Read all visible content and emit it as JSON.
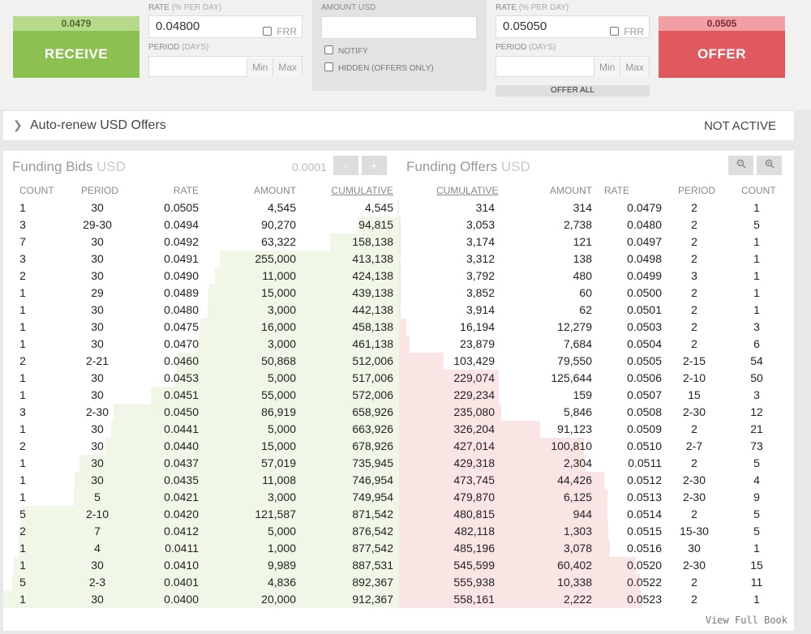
{
  "receive": {
    "rate": "0.0479",
    "label": "RECEIVE"
  },
  "offer": {
    "rate": "0.0505",
    "label": "OFFER"
  },
  "bid_form": {
    "rate_label": "RATE",
    "rate_sub": "(% PER DAY)",
    "rate_value": "0.04800",
    "frr": "FRR",
    "period_label": "PERIOD",
    "period_sub": "(DAYS)",
    "min": "Min",
    "max": "Max"
  },
  "amount": {
    "label": "AMOUNT USD",
    "notify": "NOTIFY",
    "hidden": "HIDDEN (OFFERS ONLY)"
  },
  "offer_form": {
    "rate_label": "RATE",
    "rate_sub": "(% PER DAY)",
    "rate_value": "0.05050",
    "frr": "FRR",
    "period_label": "PERIOD",
    "period_sub": "(DAYS)",
    "min": "Min",
    "max": "Max",
    "offer_all": "OFFER ALL"
  },
  "renew": {
    "title": "Auto-renew USD Offers",
    "status": "NOT ACTIVE"
  },
  "bids": {
    "title": "Funding Bids",
    "ccy": "USD",
    "precision": "0.0001",
    "minus": "-",
    "plus": "+",
    "cols": [
      "COUNT",
      "PERIOD",
      "RATE",
      "AMOUNT",
      "CUMULATIVE"
    ],
    "rows": [
      [
        "1",
        "30",
        "0.0505",
        "4,545",
        "4,545"
      ],
      [
        "3",
        "29-30",
        "0.0494",
        "90,270",
        "94,815"
      ],
      [
        "7",
        "30",
        "0.0492",
        "63,322",
        "158,138"
      ],
      [
        "3",
        "30",
        "0.0491",
        "255,000",
        "413,138"
      ],
      [
        "2",
        "30",
        "0.0490",
        "11,000",
        "424,138"
      ],
      [
        "1",
        "29",
        "0.0489",
        "15,000",
        "439,138"
      ],
      [
        "1",
        "30",
        "0.0480",
        "3,000",
        "442,138"
      ],
      [
        "1",
        "30",
        "0.0475",
        "16,000",
        "458,138"
      ],
      [
        "1",
        "30",
        "0.0470",
        "3,000",
        "461,138"
      ],
      [
        "2",
        "2-21",
        "0.0460",
        "50,868",
        "512,006"
      ],
      [
        "1",
        "30",
        "0.0453",
        "5,000",
        "517,006"
      ],
      [
        "1",
        "30",
        "0.0451",
        "55,000",
        "572,006"
      ],
      [
        "3",
        "2-30",
        "0.0450",
        "86,919",
        "658,926"
      ],
      [
        "1",
        "30",
        "0.0441",
        "5,000",
        "663,926"
      ],
      [
        "2",
        "30",
        "0.0440",
        "15,000",
        "678,926"
      ],
      [
        "1",
        "30",
        "0.0437",
        "57,019",
        "735,945"
      ],
      [
        "1",
        "30",
        "0.0435",
        "11,008",
        "746,954"
      ],
      [
        "1",
        "5",
        "0.0421",
        "3,000",
        "749,954"
      ],
      [
        "5",
        "2-10",
        "0.0420",
        "121,587",
        "871,542"
      ],
      [
        "2",
        "7",
        "0.0412",
        "5,000",
        "876,542"
      ],
      [
        "1",
        "4",
        "0.0411",
        "1,000",
        "877,542"
      ],
      [
        "1",
        "30",
        "0.0410",
        "9,989",
        "887,531"
      ],
      [
        "5",
        "2-3",
        "0.0401",
        "4,836",
        "892,367"
      ],
      [
        "1",
        "30",
        "0.0400",
        "20,000",
        "912,367"
      ]
    ]
  },
  "offers": {
    "title": "Funding Offers",
    "ccy": "USD",
    "cols": [
      "CUMULATIVE",
      "AMOUNT",
      "RATE",
      "PERIOD",
      "COUNT"
    ],
    "rows": [
      [
        "314",
        "314",
        "0.0479",
        "2",
        "1"
      ],
      [
        "3,053",
        "2,738",
        "0.0480",
        "2",
        "5"
      ],
      [
        "3,174",
        "121",
        "0.0497",
        "2",
        "1"
      ],
      [
        "3,312",
        "138",
        "0.0498",
        "2",
        "1"
      ],
      [
        "3,792",
        "480",
        "0.0499",
        "3",
        "1"
      ],
      [
        "3,852",
        "60",
        "0.0500",
        "2",
        "1"
      ],
      [
        "3,914",
        "62",
        "0.0501",
        "2",
        "1"
      ],
      [
        "16,194",
        "12,279",
        "0.0503",
        "2",
        "3"
      ],
      [
        "23,879",
        "7,684",
        "0.0504",
        "2",
        "6"
      ],
      [
        "103,429",
        "79,550",
        "0.0505",
        "2-15",
        "54"
      ],
      [
        "229,074",
        "125,644",
        "0.0506",
        "2-10",
        "50"
      ],
      [
        "229,234",
        "159",
        "0.0507",
        "15",
        "3"
      ],
      [
        "235,080",
        "5,846",
        "0.0508",
        "2-30",
        "12"
      ],
      [
        "326,204",
        "91,123",
        "0.0509",
        "2",
        "21"
      ],
      [
        "427,014",
        "100,810",
        "0.0510",
        "2-7",
        "73"
      ],
      [
        "429,318",
        "2,304",
        "0.0511",
        "2",
        "5"
      ],
      [
        "473,745",
        "44,426",
        "0.0512",
        "2-30",
        "4"
      ],
      [
        "479,870",
        "6,125",
        "0.0513",
        "2-30",
        "9"
      ],
      [
        "480,815",
        "944",
        "0.0514",
        "2",
        "5"
      ],
      [
        "482,118",
        "1,303",
        "0.0515",
        "15-30",
        "5"
      ],
      [
        "485,196",
        "3,078",
        "0.0516",
        "30",
        "1"
      ],
      [
        "545,599",
        "60,402",
        "0.0520",
        "2-30",
        "15"
      ],
      [
        "555,938",
        "10,338",
        "0.0522",
        "2",
        "11"
      ],
      [
        "558,161",
        "2,222",
        "0.0523",
        "2",
        "1"
      ]
    ]
  },
  "view_full": "View Full Book",
  "colors": {
    "receive": "#8cc152",
    "offer": "#e0595f",
    "bid_bar": "#f0f7e6",
    "ask_bar": "#fbe4e4"
  }
}
